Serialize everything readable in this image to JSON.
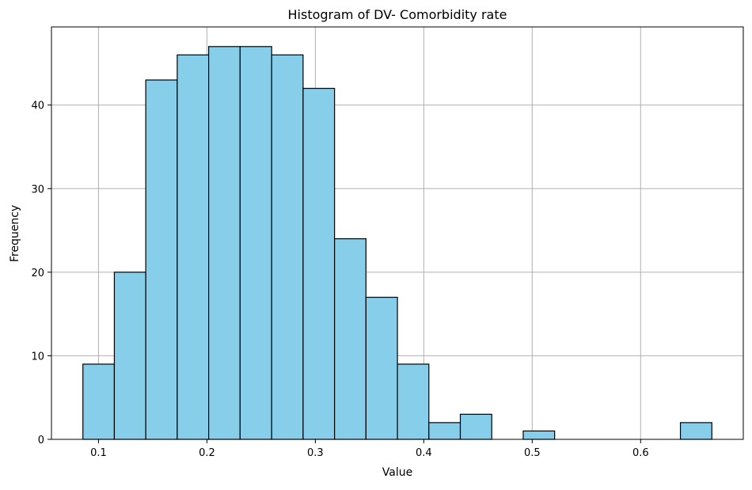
{
  "chart_data": {
    "type": "bar",
    "title": "Histogram of DV- Comorbidity rate",
    "xlabel": "Value",
    "ylabel": "Frequency",
    "xlim": [
      0.0566,
      0.6947
    ],
    "ylim": [
      0,
      49.35
    ],
    "xticks": [
      0.1,
      0.2,
      0.3,
      0.4,
      0.5,
      0.6
    ],
    "xtick_labels": [
      "0.1",
      "0.2",
      "0.3",
      "0.4",
      "0.5",
      "0.6"
    ],
    "yticks": [
      0,
      10,
      20,
      30,
      40
    ],
    "ytick_labels": [
      "0",
      "10",
      "20",
      "30",
      "40"
    ],
    "grid": true,
    "bar_color": "#87CEEB",
    "edge_color": "#000000",
    "bins": [
      [
        0.0856,
        0.1146,
        9
      ],
      [
        0.1146,
        0.1436,
        20
      ],
      [
        0.1436,
        0.1726,
        43
      ],
      [
        0.1726,
        0.2016,
        46
      ],
      [
        0.2016,
        0.2306,
        47
      ],
      [
        0.2306,
        0.2597,
        47
      ],
      [
        0.2597,
        0.2887,
        46
      ],
      [
        0.2887,
        0.3177,
        42
      ],
      [
        0.3177,
        0.3467,
        24
      ],
      [
        0.3467,
        0.3757,
        17
      ],
      [
        0.3757,
        0.4047,
        9
      ],
      [
        0.4047,
        0.4337,
        2
      ],
      [
        0.4337,
        0.4627,
        3
      ],
      [
        0.4627,
        0.4917,
        0
      ],
      [
        0.4917,
        0.5207,
        1
      ],
      [
        0.5207,
        0.5497,
        0
      ],
      [
        0.5497,
        0.5787,
        0
      ],
      [
        0.5787,
        0.6077,
        0
      ],
      [
        0.6077,
        0.6367,
        0
      ],
      [
        0.6367,
        0.6657,
        2
      ]
    ]
  }
}
